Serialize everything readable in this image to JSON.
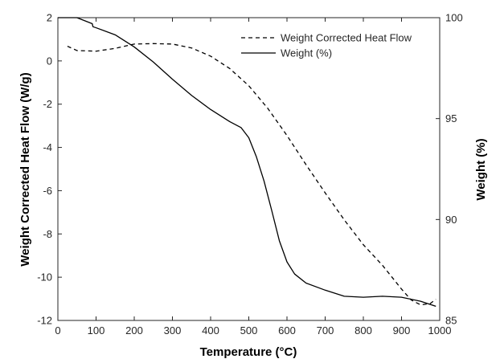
{
  "chart_data": {
    "type": "line",
    "title": "",
    "xlabel": "Temperature (°C)",
    "ylabel_left": "Weight Corrected Heat Flow (W/g)",
    "ylabel_right": "Weight (%)",
    "xlim": [
      0,
      1000
    ],
    "ylim_left": [
      -12,
      2
    ],
    "ylim_right": [
      85,
      100
    ],
    "x_ticks": [
      "0",
      "100",
      "200",
      "300",
      "400",
      "500",
      "600",
      "700",
      "800",
      "900",
      "1000"
    ],
    "y_left_ticks": [
      "2",
      "0",
      "-2",
      "-4",
      "-6",
      "-8",
      "-10",
      "-12"
    ],
    "y_right_ticks": [
      "100",
      "95",
      "90",
      "85"
    ],
    "grid": false,
    "legend_position": "top-right",
    "series": [
      {
        "name": "Weight Corrected Heat Flow",
        "axis": "left",
        "style": "dashed",
        "color": "#000000",
        "x": [
          25,
          50,
          100,
          150,
          200,
          250,
          300,
          350,
          400,
          450,
          500,
          550,
          600,
          650,
          700,
          750,
          800,
          850,
          900,
          925,
          950,
          975,
          990
        ],
        "y": [
          0.68,
          0.48,
          0.45,
          0.58,
          0.78,
          0.8,
          0.78,
          0.6,
          0.22,
          -0.35,
          -1.15,
          -2.2,
          -3.45,
          -4.8,
          -6.1,
          -7.35,
          -8.5,
          -9.45,
          -10.55,
          -11.05,
          -11.28,
          -11.22,
          -11.02
        ]
      },
      {
        "name": "Weight (%)",
        "axis": "right",
        "style": "solid",
        "color": "#000000",
        "x": [
          0,
          50,
          90,
          92,
          100,
          150,
          200,
          250,
          300,
          350,
          400,
          450,
          480,
          500,
          520,
          540,
          560,
          580,
          600,
          620,
          650,
          700,
          750,
          800,
          850,
          900,
          950,
          990
        ],
        "y": [
          100,
          100,
          99.7,
          99.55,
          99.5,
          99.15,
          98.55,
          97.8,
          96.95,
          96.15,
          95.45,
          94.85,
          94.55,
          94.05,
          93.1,
          91.9,
          90.45,
          88.95,
          87.9,
          87.3,
          86.85,
          86.5,
          86.2,
          86.15,
          86.2,
          86.15,
          85.95,
          85.7
        ]
      }
    ]
  }
}
